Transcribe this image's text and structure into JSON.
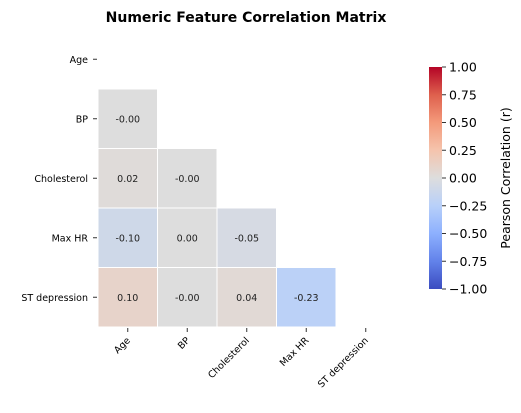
{
  "chart_data": {
    "type": "heatmap",
    "title": "Numeric Feature Correlation Matrix",
    "row_labels": [
      "Age",
      "BP",
      "Cholesterol",
      "Max HR",
      "ST depression"
    ],
    "col_labels": [
      "Age",
      "BP",
      "Cholesterol",
      "Max HR",
      "ST depression"
    ],
    "mask": "upper-triangle-including-diagonal",
    "cells": [
      {
        "row": "BP",
        "col": "Age",
        "value": -0.0,
        "label": "-0.00"
      },
      {
        "row": "Cholesterol",
        "col": "Age",
        "value": 0.02,
        "label": "0.02"
      },
      {
        "row": "Cholesterol",
        "col": "BP",
        "value": -0.0,
        "label": "-0.00"
      },
      {
        "row": "Max HR",
        "col": "Age",
        "value": -0.1,
        "label": "-0.10"
      },
      {
        "row": "Max HR",
        "col": "BP",
        "value": 0.0,
        "label": "0.00"
      },
      {
        "row": "Max HR",
        "col": "Cholesterol",
        "value": -0.05,
        "label": "-0.05"
      },
      {
        "row": "ST depression",
        "col": "Age",
        "value": 0.1,
        "label": "0.10"
      },
      {
        "row": "ST depression",
        "col": "BP",
        "value": -0.0,
        "label": "-0.00"
      },
      {
        "row": "ST depression",
        "col": "Cholesterol",
        "value": 0.04,
        "label": "0.04"
      },
      {
        "row": "ST depression",
        "col": "Max HR",
        "value": -0.23,
        "label": "-0.23"
      }
    ],
    "colorbar": {
      "label": "Pearson Correlation (r)",
      "vmin": -1.0,
      "vmax": 1.0,
      "ticks": [
        1.0,
        0.75,
        0.5,
        0.25,
        0.0,
        -0.25,
        -0.5,
        -0.75,
        -1.0
      ],
      "tick_labels": [
        "1.00",
        "0.75",
        "0.50",
        "0.25",
        "0.00",
        "−0.25",
        "−0.50",
        "−0.75",
        "−1.00"
      ],
      "colormap": "coolwarm"
    },
    "grid": false
  }
}
